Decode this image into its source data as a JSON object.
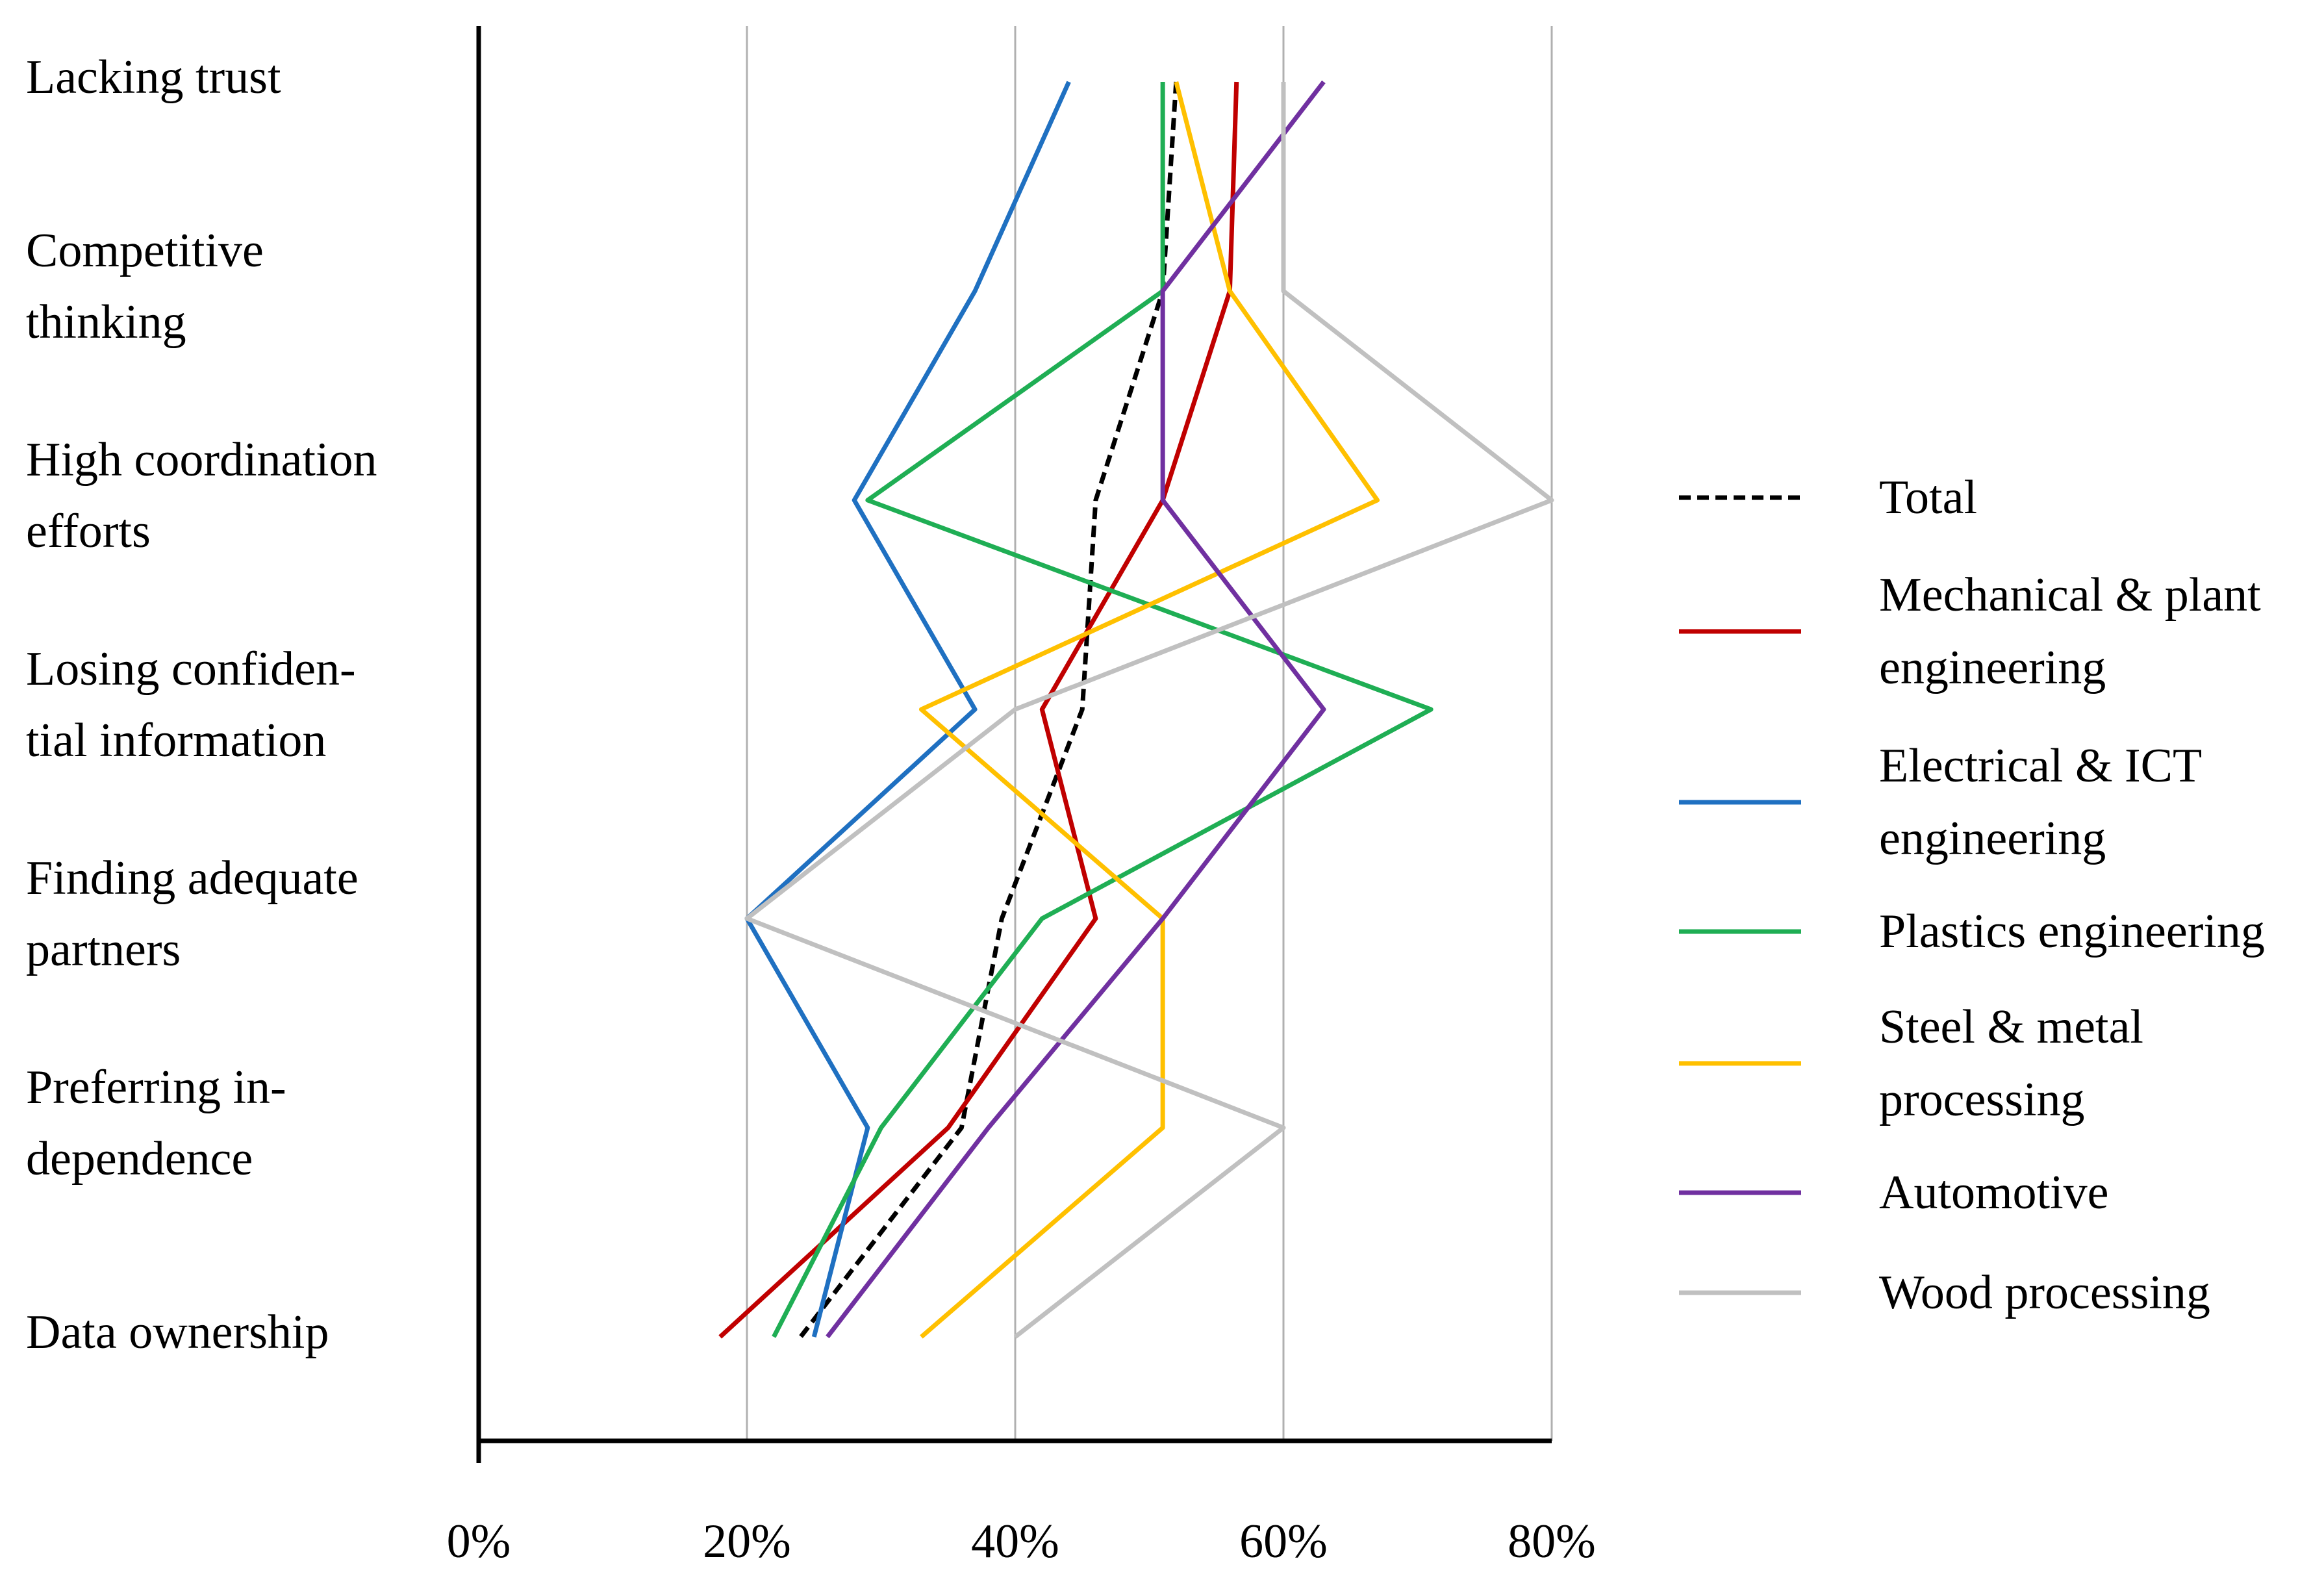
{
  "chart_data": {
    "type": "line",
    "orientation": "horizontal",
    "categories": [
      [
        "Lacking trust"
      ],
      [
        "Competitive",
        "thinking"
      ],
      [
        "High coordination",
        "efforts"
      ],
      [
        "Losing confiden-",
        "tial information"
      ],
      [
        "Finding adequate",
        "partners"
      ],
      [
        "Preferring in-",
        "dependence"
      ],
      [
        "Data ownership"
      ]
    ],
    "series": [
      {
        "name": "Total",
        "color": "#000000",
        "dashed": true,
        "values": [
          52,
          51,
          46,
          45,
          39,
          36,
          24
        ]
      },
      {
        "name": "Mechanical & plant engineering",
        "color": "#c00000",
        "values": [
          56.5,
          56,
          51,
          42,
          46,
          35,
          18
        ]
      },
      {
        "name": "Electrical & ICT engineering",
        "color": "#1f70c1",
        "values": [
          44,
          37,
          28,
          37,
          20,
          29,
          25
        ]
      },
      {
        "name": "Plastics engineering",
        "color": "#1fae54",
        "values": [
          51,
          51,
          29,
          71,
          42,
          30,
          22
        ]
      },
      {
        "name": "Steel & metal processing",
        "color": "#ffc000",
        "values": [
          52,
          56,
          67,
          33,
          51,
          51,
          33
        ]
      },
      {
        "name": "Automotive",
        "color": "#7030a0",
        "values": [
          63,
          51,
          51,
          63,
          51,
          38,
          26
        ]
      },
      {
        "name": "Wood processing",
        "color": "#c0c0c0",
        "values": [
          60,
          60,
          80,
          40,
          20,
          60,
          40
        ]
      }
    ],
    "xlim": [
      0,
      80
    ],
    "xticks": [
      {
        "value": 0,
        "label": "0%"
      },
      {
        "value": 20,
        "label": "20%"
      },
      {
        "value": 40,
        "label": "40%"
      },
      {
        "value": 60,
        "label": "60%"
      },
      {
        "value": 80,
        "label": "80%"
      }
    ],
    "grid": true,
    "legend": "right"
  }
}
